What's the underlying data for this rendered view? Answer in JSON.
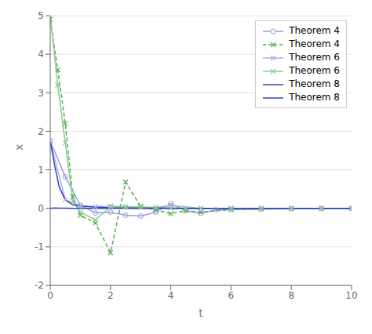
{
  "chart_data": {
    "type": "line",
    "title": "",
    "xlabel": "t",
    "ylabel": "x",
    "xlim": [
      0,
      10
    ],
    "ylim": [
      -2,
      5
    ],
    "xticks": [
      0,
      2,
      4,
      6,
      8,
      10
    ],
    "yticks": [
      -2,
      -1,
      0,
      1,
      2,
      3,
      4,
      5
    ],
    "grid": "y",
    "legend": "upper right",
    "series": [
      {
        "name": "Theorem 4",
        "color": "#9999dd",
        "marker": "o",
        "line_style": "solid",
        "x": [
          0,
          0.5,
          1.0,
          1.5,
          2.0,
          2.5,
          3.0,
          3.5,
          4.0,
          4.5,
          5.0,
          5.5,
          6.0,
          7.0,
          8.0,
          9.0,
          10.0
        ],
        "values": [
          1.75,
          0.82,
          0.08,
          -0.12,
          -0.1,
          -0.18,
          -0.2,
          -0.1,
          0.12,
          -0.06,
          -0.13,
          -0.04,
          -0.03,
          -0.02,
          -0.01,
          -0.005,
          0.0
        ]
      },
      {
        "name": "Theorem 4",
        "color": "#55aa55",
        "marker": "x",
        "line_style": "dashed",
        "x": [
          0,
          0.25,
          0.5,
          0.75,
          1.0,
          1.5,
          2.0,
          2.5,
          3.0,
          3.5,
          4.0,
          4.5,
          5.0,
          6.0,
          7.0,
          8.0,
          9.0,
          10.0
        ],
        "values": [
          4.9,
          3.6,
          2.2,
          0.3,
          -0.18,
          -0.38,
          -1.15,
          0.68,
          0.05,
          -0.04,
          -0.14,
          -0.06,
          -0.1,
          -0.03,
          -0.015,
          -0.008,
          -0.003,
          0.0
        ]
      },
      {
        "name": "Theorem 6",
        "color": "#aaaaee",
        "marker": "x",
        "line_style": "solid",
        "x": [
          0,
          0.5,
          1.0,
          1.5,
          2.0,
          2.5,
          3.0,
          3.5,
          4.0,
          5.0,
          6.0,
          7.0,
          8.0,
          9.0,
          10.0
        ],
        "values": [
          1.75,
          0.22,
          0.07,
          0.04,
          0.06,
          0.04,
          0.03,
          0.02,
          0.08,
          0.0,
          0.0,
          0.0,
          0.0,
          0.0,
          0.0
        ]
      },
      {
        "name": "Theorem 6",
        "color": "#88cc88",
        "marker": "x",
        "line_style": "solid",
        "x": [
          0,
          0.25,
          0.5,
          0.75,
          1.0,
          1.5,
          2.0,
          2.5,
          3.0,
          3.5,
          4.0,
          4.5,
          5.0,
          6.0,
          7.0,
          8.0,
          9.0,
          10.0
        ],
        "values": [
          5.0,
          3.2,
          1.7,
          0.2,
          -0.1,
          -0.3,
          0.04,
          0.04,
          0.03,
          0.02,
          0.01,
          0.0,
          0.0,
          0.0,
          0.0,
          0.0,
          0.0,
          0.0
        ]
      },
      {
        "name": "Theorem 8",
        "color": "#3344bb",
        "marker": null,
        "line_style": "solid",
        "x": [
          0,
          0.15,
          0.3,
          0.5,
          0.75,
          1.0,
          1.5,
          2.0,
          3.0,
          4.0,
          5.0,
          6.0,
          7.0,
          8.0,
          9.0,
          10.0
        ],
        "values": [
          1.75,
          1.1,
          0.55,
          0.22,
          0.09,
          0.06,
          0.03,
          0.015,
          0.005,
          0.002,
          0.001,
          0.0,
          0.0,
          0.0,
          0.0,
          0.0
        ]
      },
      {
        "name": "Theorem 8",
        "color": "#3344bb",
        "marker": null,
        "line_style": "solid",
        "x": [
          0,
          0.15,
          0.3,
          0.5,
          0.75,
          1.0,
          1.5,
          2.0,
          3.0,
          4.0,
          5.0,
          6.0,
          7.0,
          8.0,
          9.0,
          10.0
        ],
        "values": [
          0.0,
          0.01,
          0.005,
          0.002,
          0.001,
          0.0,
          0.0,
          0.0,
          0.0,
          0.0,
          0.0,
          0.0,
          0.0,
          0.0,
          0.0,
          0.0
        ]
      }
    ]
  }
}
